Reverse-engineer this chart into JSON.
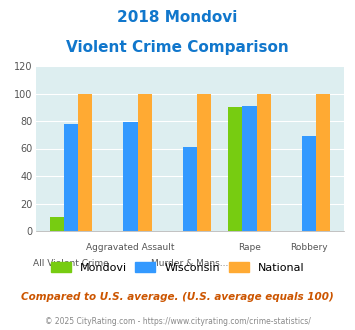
{
  "title_line1": "2018 Mondovi",
  "title_line2": "Violent Crime Comparison",
  "categories": [
    "All Violent Crime",
    "Aggravated Assault",
    "Murder & Mans...",
    "Rape",
    "Robbery"
  ],
  "xtick_line1": [
    "",
    "Aggravated Assault",
    "",
    "Rape",
    "Robbery"
  ],
  "xtick_line2": [
    "All Violent Crime",
    "",
    "Murder & Mans...",
    "",
    ""
  ],
  "mondovi": [
    10,
    0,
    0,
    90,
    0
  ],
  "wisconsin": [
    78,
    79,
    61,
    91,
    69
  ],
  "national": [
    100,
    100,
    100,
    100,
    100
  ],
  "colors": {
    "mondovi": "#77cc11",
    "wisconsin": "#3399ff",
    "national": "#ffaa33"
  },
  "ylim": [
    0,
    120
  ],
  "yticks": [
    0,
    20,
    40,
    60,
    80,
    100,
    120
  ],
  "legend_labels": [
    "Mondovi",
    "Wisconsin",
    "National"
  ],
  "footnote1": "Compared to U.S. average. (U.S. average equals 100)",
  "footnote2": "© 2025 CityRating.com - https://www.cityrating.com/crime-statistics/",
  "bg_color": "#ddeef0",
  "title_color": "#1177cc",
  "footnote1_color": "#cc5500",
  "footnote2_color": "#888888"
}
